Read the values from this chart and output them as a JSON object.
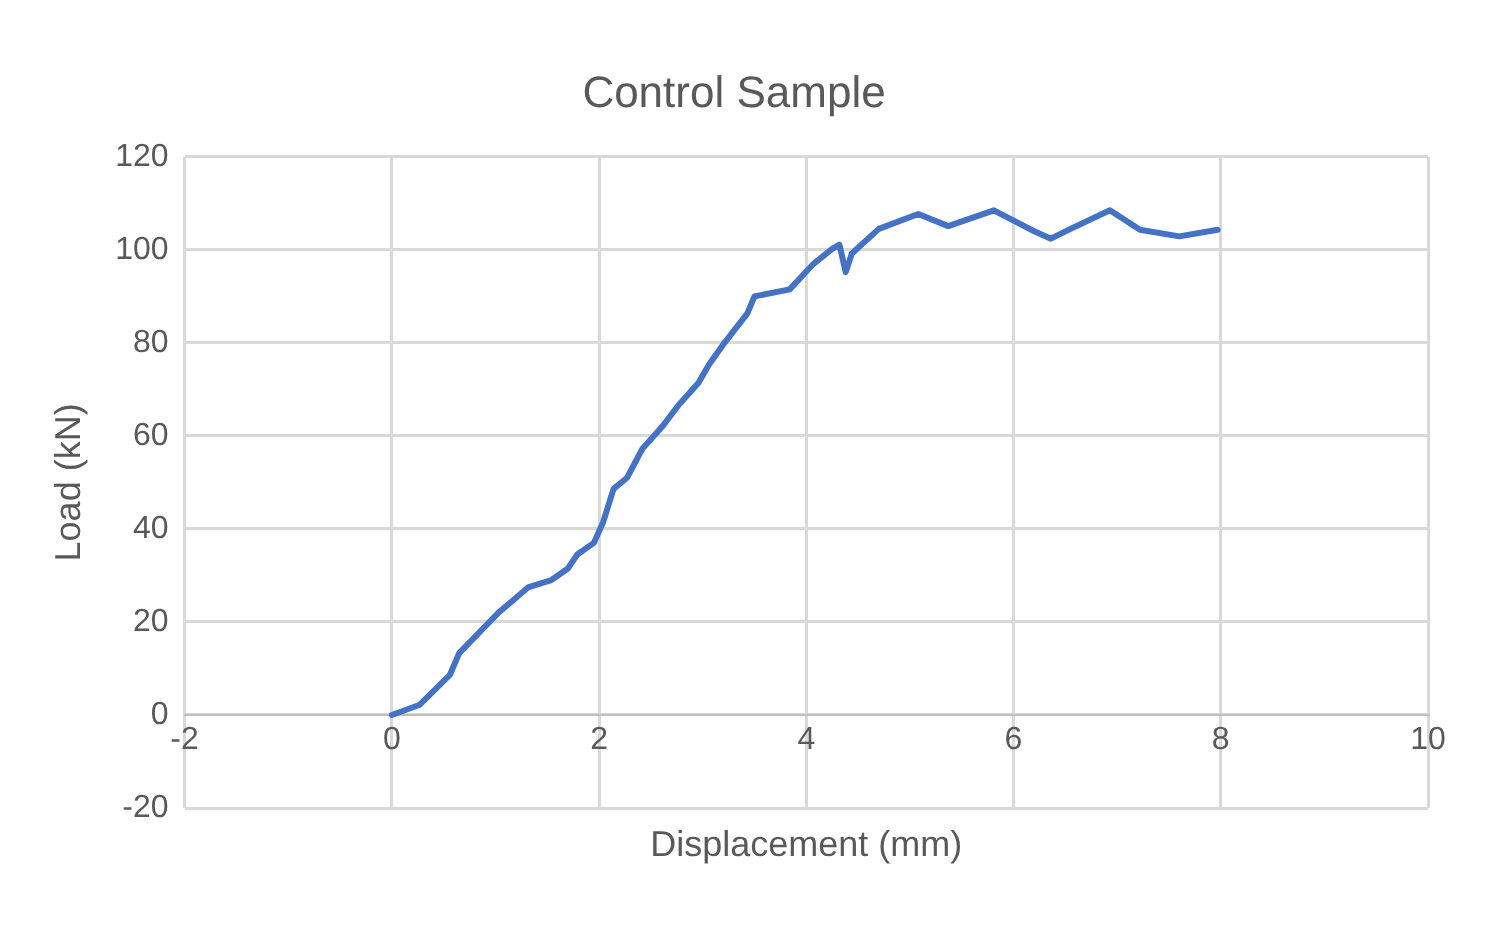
{
  "chart_data": {
    "type": "line",
    "title": "Control Sample",
    "xlabel": "Displacement (mm)",
    "ylabel": "Load (kN)",
    "series": [
      {
        "color": "#4472c4",
        "x": [
          0,
          0.27,
          0.56,
          0.65,
          1.03,
          1.32,
          1.54,
          1.7,
          1.79,
          1.95,
          2.04,
          2.14,
          2.27,
          2.42,
          2.61,
          2.77,
          2.96,
          3.06,
          3.21,
          3.43,
          3.5,
          3.84,
          4.07,
          4.25,
          4.32,
          4.38,
          4.44,
          4.7,
          5.08,
          5.37,
          5.81,
          6.2,
          6.36,
          6.55,
          6.93,
          7.22,
          7.6,
          7.97
        ],
        "values": [
          0,
          2.2,
          8.6,
          13.3,
          22,
          27.5,
          29,
          31.5,
          34.5,
          37,
          41.5,
          48.6,
          51,
          57.3,
          62,
          66.7,
          71.4,
          75.3,
          80,
          86.3,
          90,
          91.5,
          97,
          100.2,
          101.1,
          95.2,
          99.2,
          104.5,
          107.7,
          105.1,
          108.5,
          104,
          102.4,
          104.5,
          108.5,
          104.3,
          102.9,
          104.3
        ]
      }
    ],
    "xlim": [
      -2,
      10
    ],
    "xticks": [
      -2,
      0,
      2,
      4,
      6,
      8,
      10
    ],
    "ylim": [
      -20,
      120
    ],
    "yticks": [
      -20,
      0,
      20,
      40,
      60,
      80,
      100,
      120
    ],
    "grid": true,
    "legend": false,
    "marker": "none",
    "line_style": "solid"
  }
}
